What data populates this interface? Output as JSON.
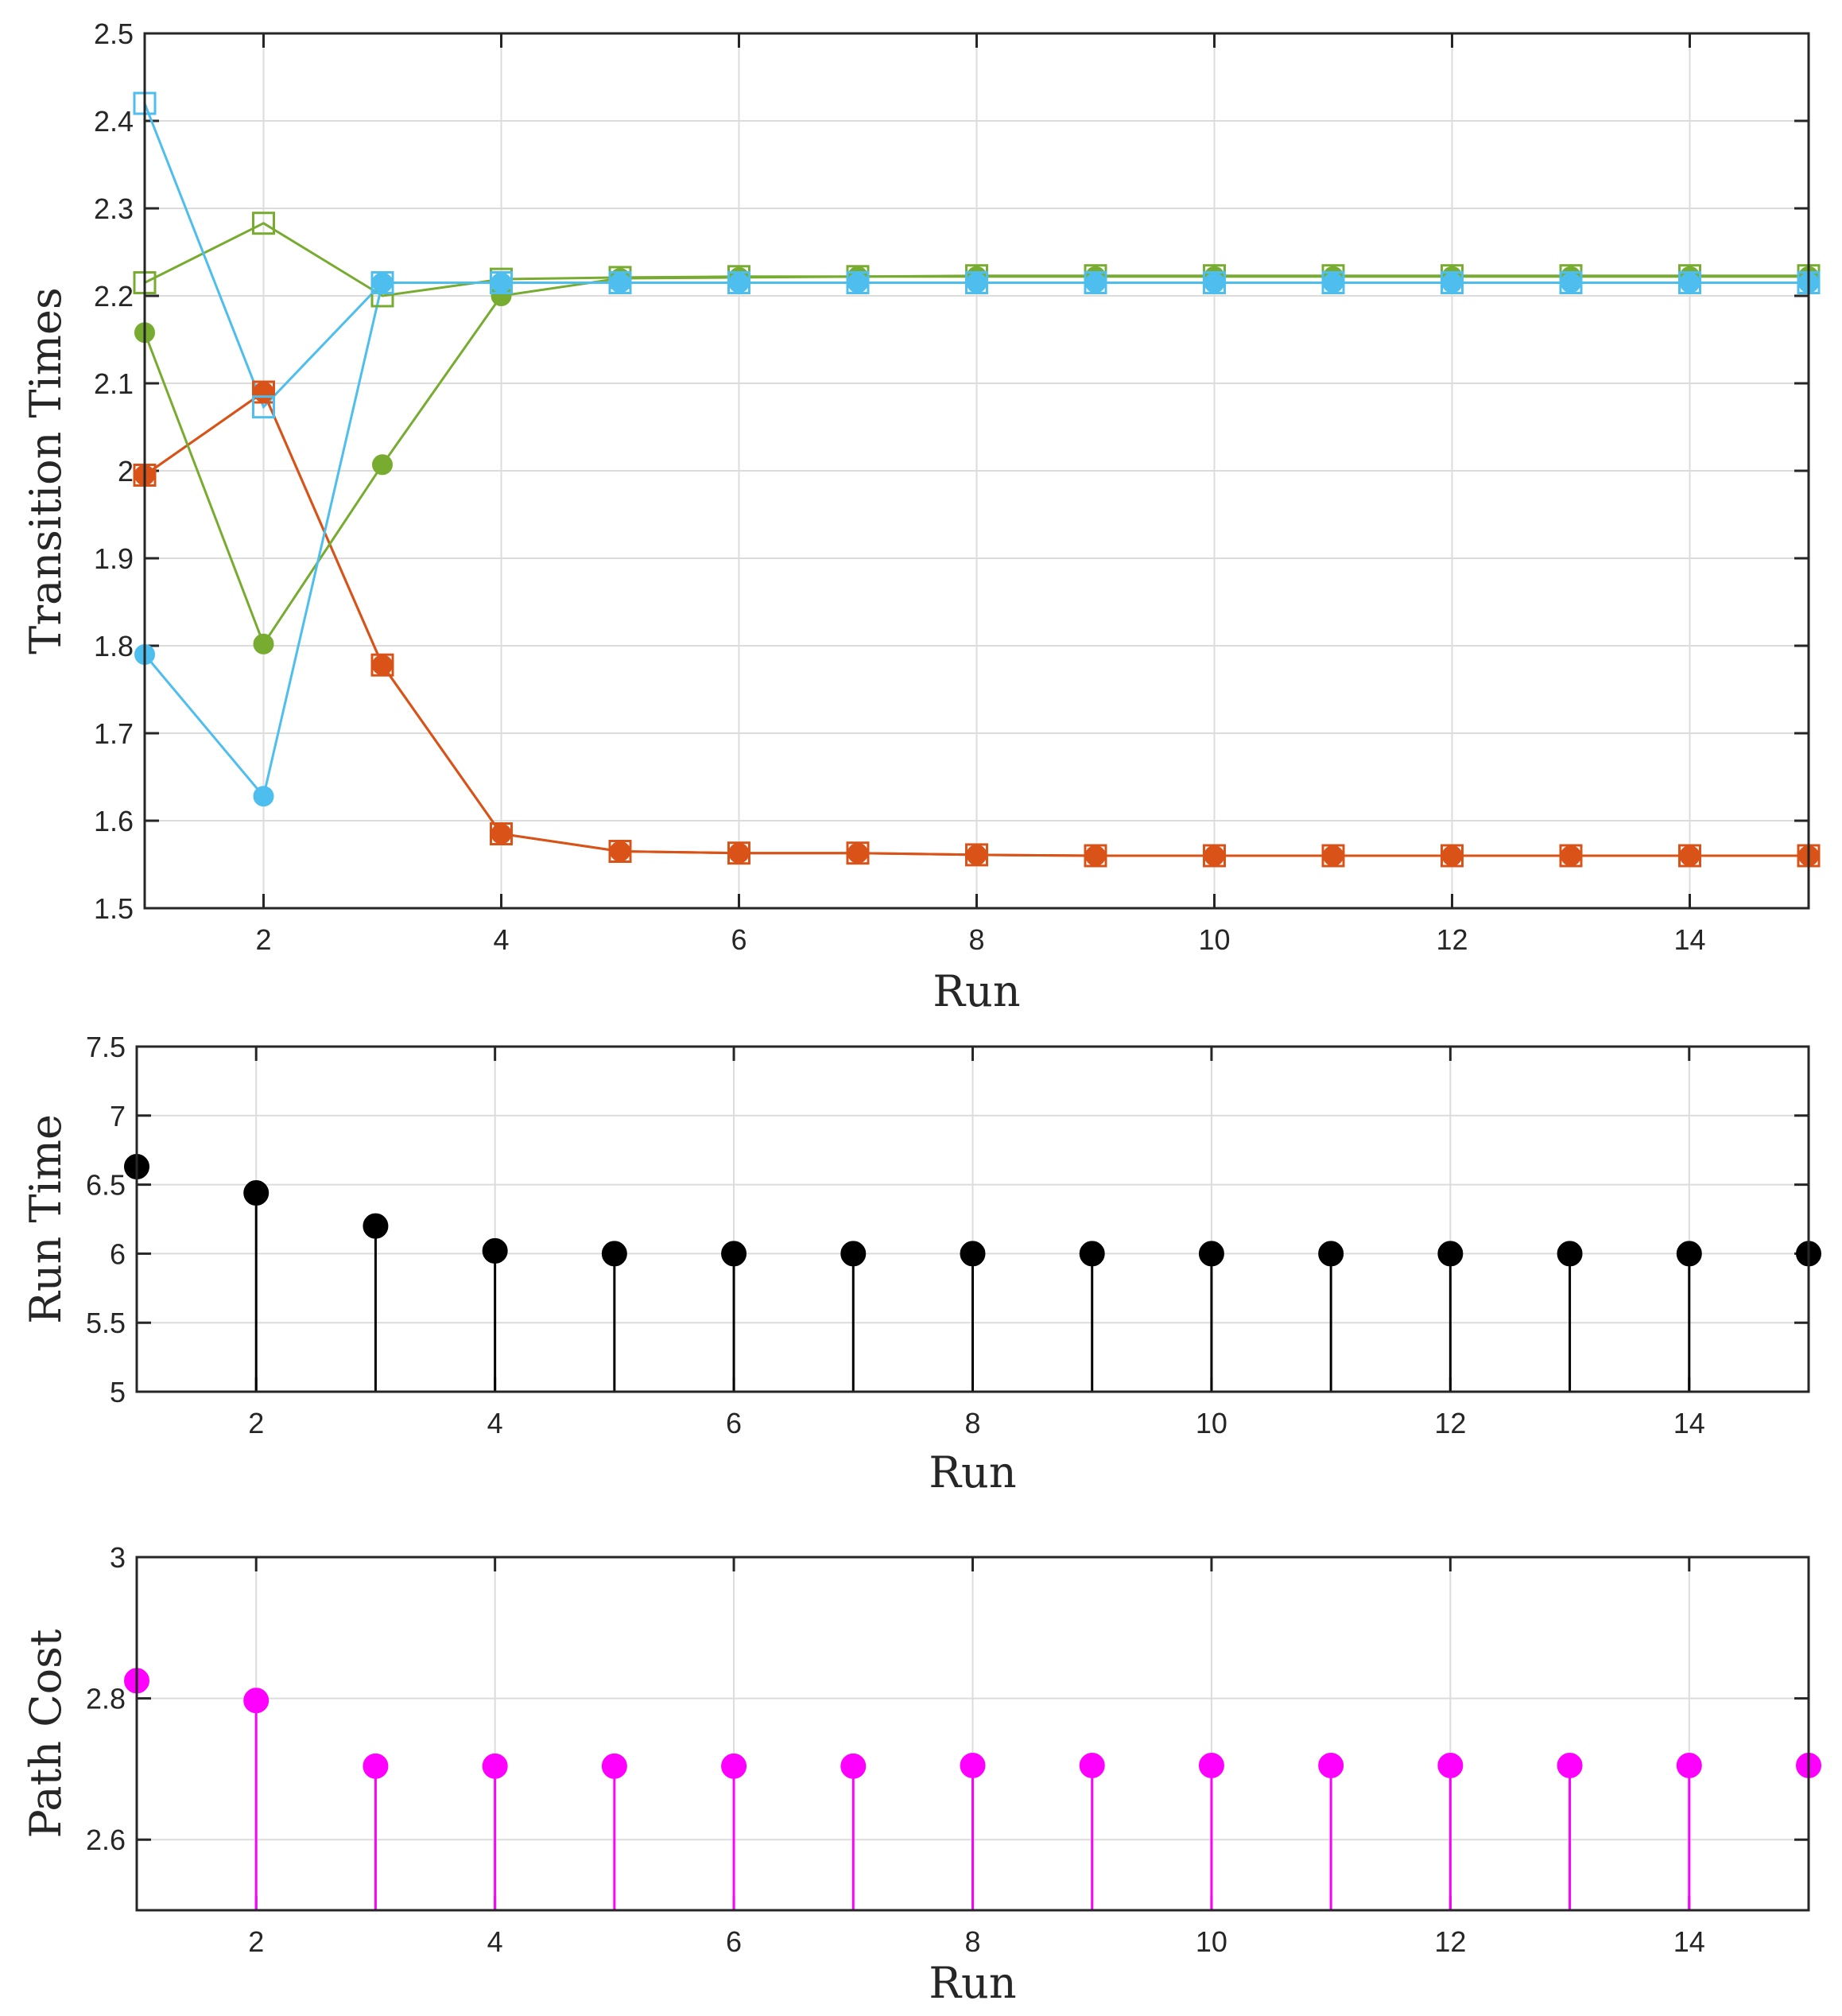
{
  "colors": {
    "orange": "#D95319",
    "green": "#77AC30",
    "cyan": "#4DBEEE",
    "black": "#000000",
    "magenta": "#FF00FF",
    "axis": "#262626",
    "grid": "#DCDCDC"
  },
  "chart_data": [
    {
      "id": "transition-times",
      "type": "line",
      "title": "",
      "xlabel": "Run",
      "ylabel": "Transition Times",
      "xlim": [
        1,
        15
      ],
      "ylim": [
        1.5,
        2.5
      ],
      "grid": true,
      "x_ticks": [
        2,
        4,
        6,
        8,
        10,
        12,
        14
      ],
      "y_ticks": [
        1.5,
        1.6,
        1.7,
        1.8,
        1.9,
        2,
        2.1,
        2.2,
        2.3,
        2.4,
        2.5
      ],
      "x_tick_labels": [
        "2",
        "4",
        "6",
        "8",
        "10",
        "12",
        "14"
      ],
      "y_tick_labels": [
        "1.5",
        "1.6",
        "1.7",
        "1.8",
        "1.9",
        "2",
        "2.1",
        "2.2",
        "2.3",
        "2.4",
        "2.5"
      ],
      "x": [
        1,
        2,
        3,
        4,
        5,
        6,
        7,
        8,
        9,
        10,
        11,
        12,
        13,
        14,
        15
      ],
      "series": [
        {
          "name": "orange-circle",
          "color": "orange",
          "marker": "circle",
          "values": [
            1.995,
            2.09,
            1.778,
            1.585,
            1.565,
            1.563,
            1.563,
            1.561,
            1.56,
            1.56,
            1.56,
            1.56,
            1.56,
            1.56,
            1.56
          ]
        },
        {
          "name": "orange-square",
          "color": "orange",
          "marker": "square",
          "values": [
            1.995,
            2.09,
            1.778,
            1.585,
            1.565,
            1.563,
            1.563,
            1.561,
            1.56,
            1.56,
            1.56,
            1.56,
            1.56,
            1.56,
            1.56
          ]
        },
        {
          "name": "green-circle",
          "color": "green",
          "marker": "circle",
          "values": [
            2.158,
            1.802,
            2.007,
            2.2,
            2.22,
            2.221,
            2.222,
            2.222,
            2.222,
            2.222,
            2.222,
            2.222,
            2.222,
            2.222,
            2.222
          ]
        },
        {
          "name": "green-square",
          "color": "green",
          "marker": "square",
          "values": [
            2.215,
            2.283,
            2.2,
            2.219,
            2.221,
            2.222,
            2.222,
            2.223,
            2.223,
            2.223,
            2.223,
            2.223,
            2.223,
            2.223,
            2.223
          ]
        },
        {
          "name": "cyan-circle",
          "color": "cyan",
          "marker": "circle",
          "values": [
            1.79,
            1.628,
            2.215,
            2.215,
            2.215,
            2.215,
            2.215,
            2.215,
            2.215,
            2.215,
            2.215,
            2.215,
            2.215,
            2.215,
            2.215
          ]
        },
        {
          "name": "cyan-square",
          "color": "cyan",
          "marker": "square",
          "values": [
            2.42,
            2.073,
            2.215,
            2.215,
            2.215,
            2.215,
            2.215,
            2.215,
            2.215,
            2.215,
            2.215,
            2.215,
            2.215,
            2.215,
            2.215
          ]
        }
      ]
    },
    {
      "id": "run-time",
      "type": "stem",
      "title": "",
      "xlabel": "Run",
      "ylabel": "Run Time",
      "xlim": [
        1,
        15
      ],
      "ylim": [
        5,
        7.5
      ],
      "grid": true,
      "x_ticks": [
        2,
        4,
        6,
        8,
        10,
        12,
        14
      ],
      "y_ticks": [
        5,
        5.5,
        6,
        6.5,
        7,
        7.5
      ],
      "x_tick_labels": [
        "2",
        "4",
        "6",
        "8",
        "10",
        "12",
        "14"
      ],
      "y_tick_labels": [
        "5",
        "5.5",
        "6",
        "6.5",
        "7",
        "7.5"
      ],
      "x": [
        1,
        2,
        3,
        4,
        5,
        6,
        7,
        8,
        9,
        10,
        11,
        12,
        13,
        14,
        15
      ],
      "series": [
        {
          "name": "run-time",
          "color": "black",
          "marker": "circle",
          "values": [
            6.63,
            6.44,
            6.2,
            6.02,
            6.0,
            6.0,
            6.0,
            6.0,
            6.0,
            6.0,
            6.0,
            6.0,
            6.0,
            6.0,
            6.0
          ]
        }
      ]
    },
    {
      "id": "path-cost",
      "type": "stem",
      "title": "",
      "xlabel": "Run",
      "ylabel": "Path Cost",
      "xlim": [
        1,
        15
      ],
      "ylim": [
        2.5,
        3
      ],
      "grid": true,
      "x_ticks": [
        2,
        4,
        6,
        8,
        10,
        12,
        14
      ],
      "y_ticks": [
        2.6,
        2.8,
        3
      ],
      "x_tick_labels": [
        "2",
        "4",
        "6",
        "8",
        "10",
        "12",
        "14"
      ],
      "y_tick_labels": [
        "2.6",
        "2.8",
        "3"
      ],
      "x": [
        1,
        2,
        3,
        4,
        5,
        6,
        7,
        8,
        9,
        10,
        11,
        12,
        13,
        14,
        15
      ],
      "series": [
        {
          "name": "path-cost",
          "color": "magenta",
          "marker": "circle",
          "values": [
            2.825,
            2.797,
            2.704,
            2.704,
            2.704,
            2.704,
            2.704,
            2.705,
            2.705,
            2.705,
            2.705,
            2.705,
            2.705,
            2.705,
            2.705
          ]
        }
      ]
    }
  ]
}
